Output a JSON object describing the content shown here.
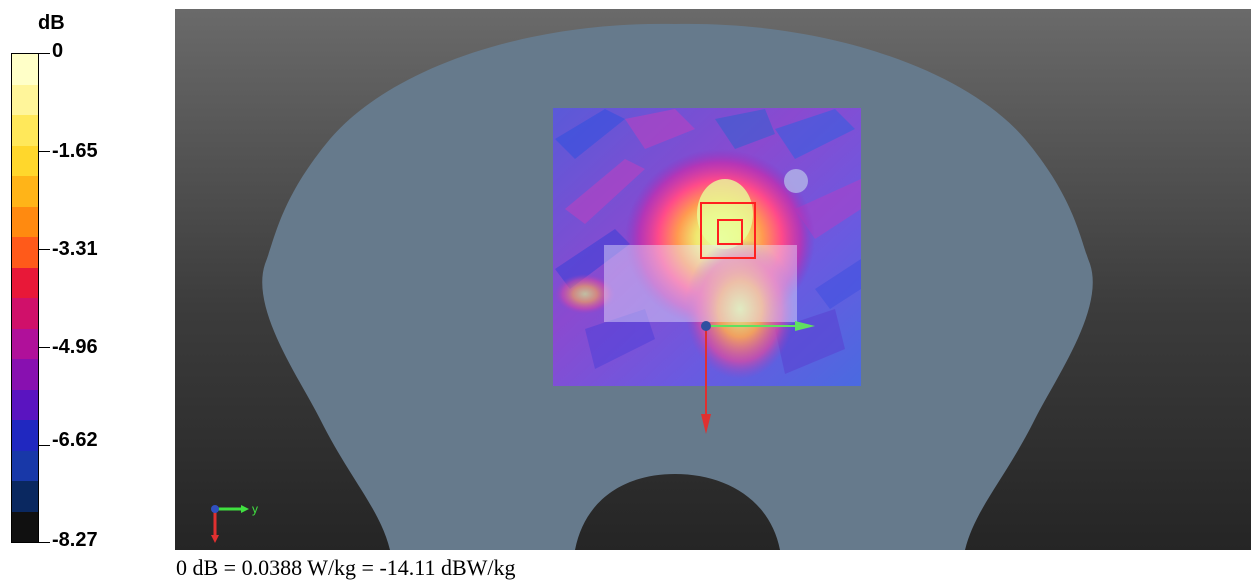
{
  "legend": {
    "unit": "dB",
    "labels": [
      "0",
      "-1.65",
      "-3.31",
      "-4.96",
      "-6.62",
      "-8.27"
    ],
    "colors": [
      "#ffffc8",
      "#fff59a",
      "#ffe85a",
      "#ffd72c",
      "#ffb418",
      "#ff8a10",
      "#ff5a1a",
      "#e81838",
      "#d0106a",
      "#b0109a",
      "#8810b0",
      "#5a14c0",
      "#2028c0",
      "#1838a8",
      "#0a2860",
      "#101010"
    ]
  },
  "viewport": {
    "axes_icon_label": "y",
    "probe_color": "#ff0000",
    "background_top": "#6a6a6a",
    "background_bottom": "#252525",
    "phantom_color": "#667a8c"
  },
  "caption": "0 dB = 0.0388 W/kg = -14.11 dBW/kg"
}
